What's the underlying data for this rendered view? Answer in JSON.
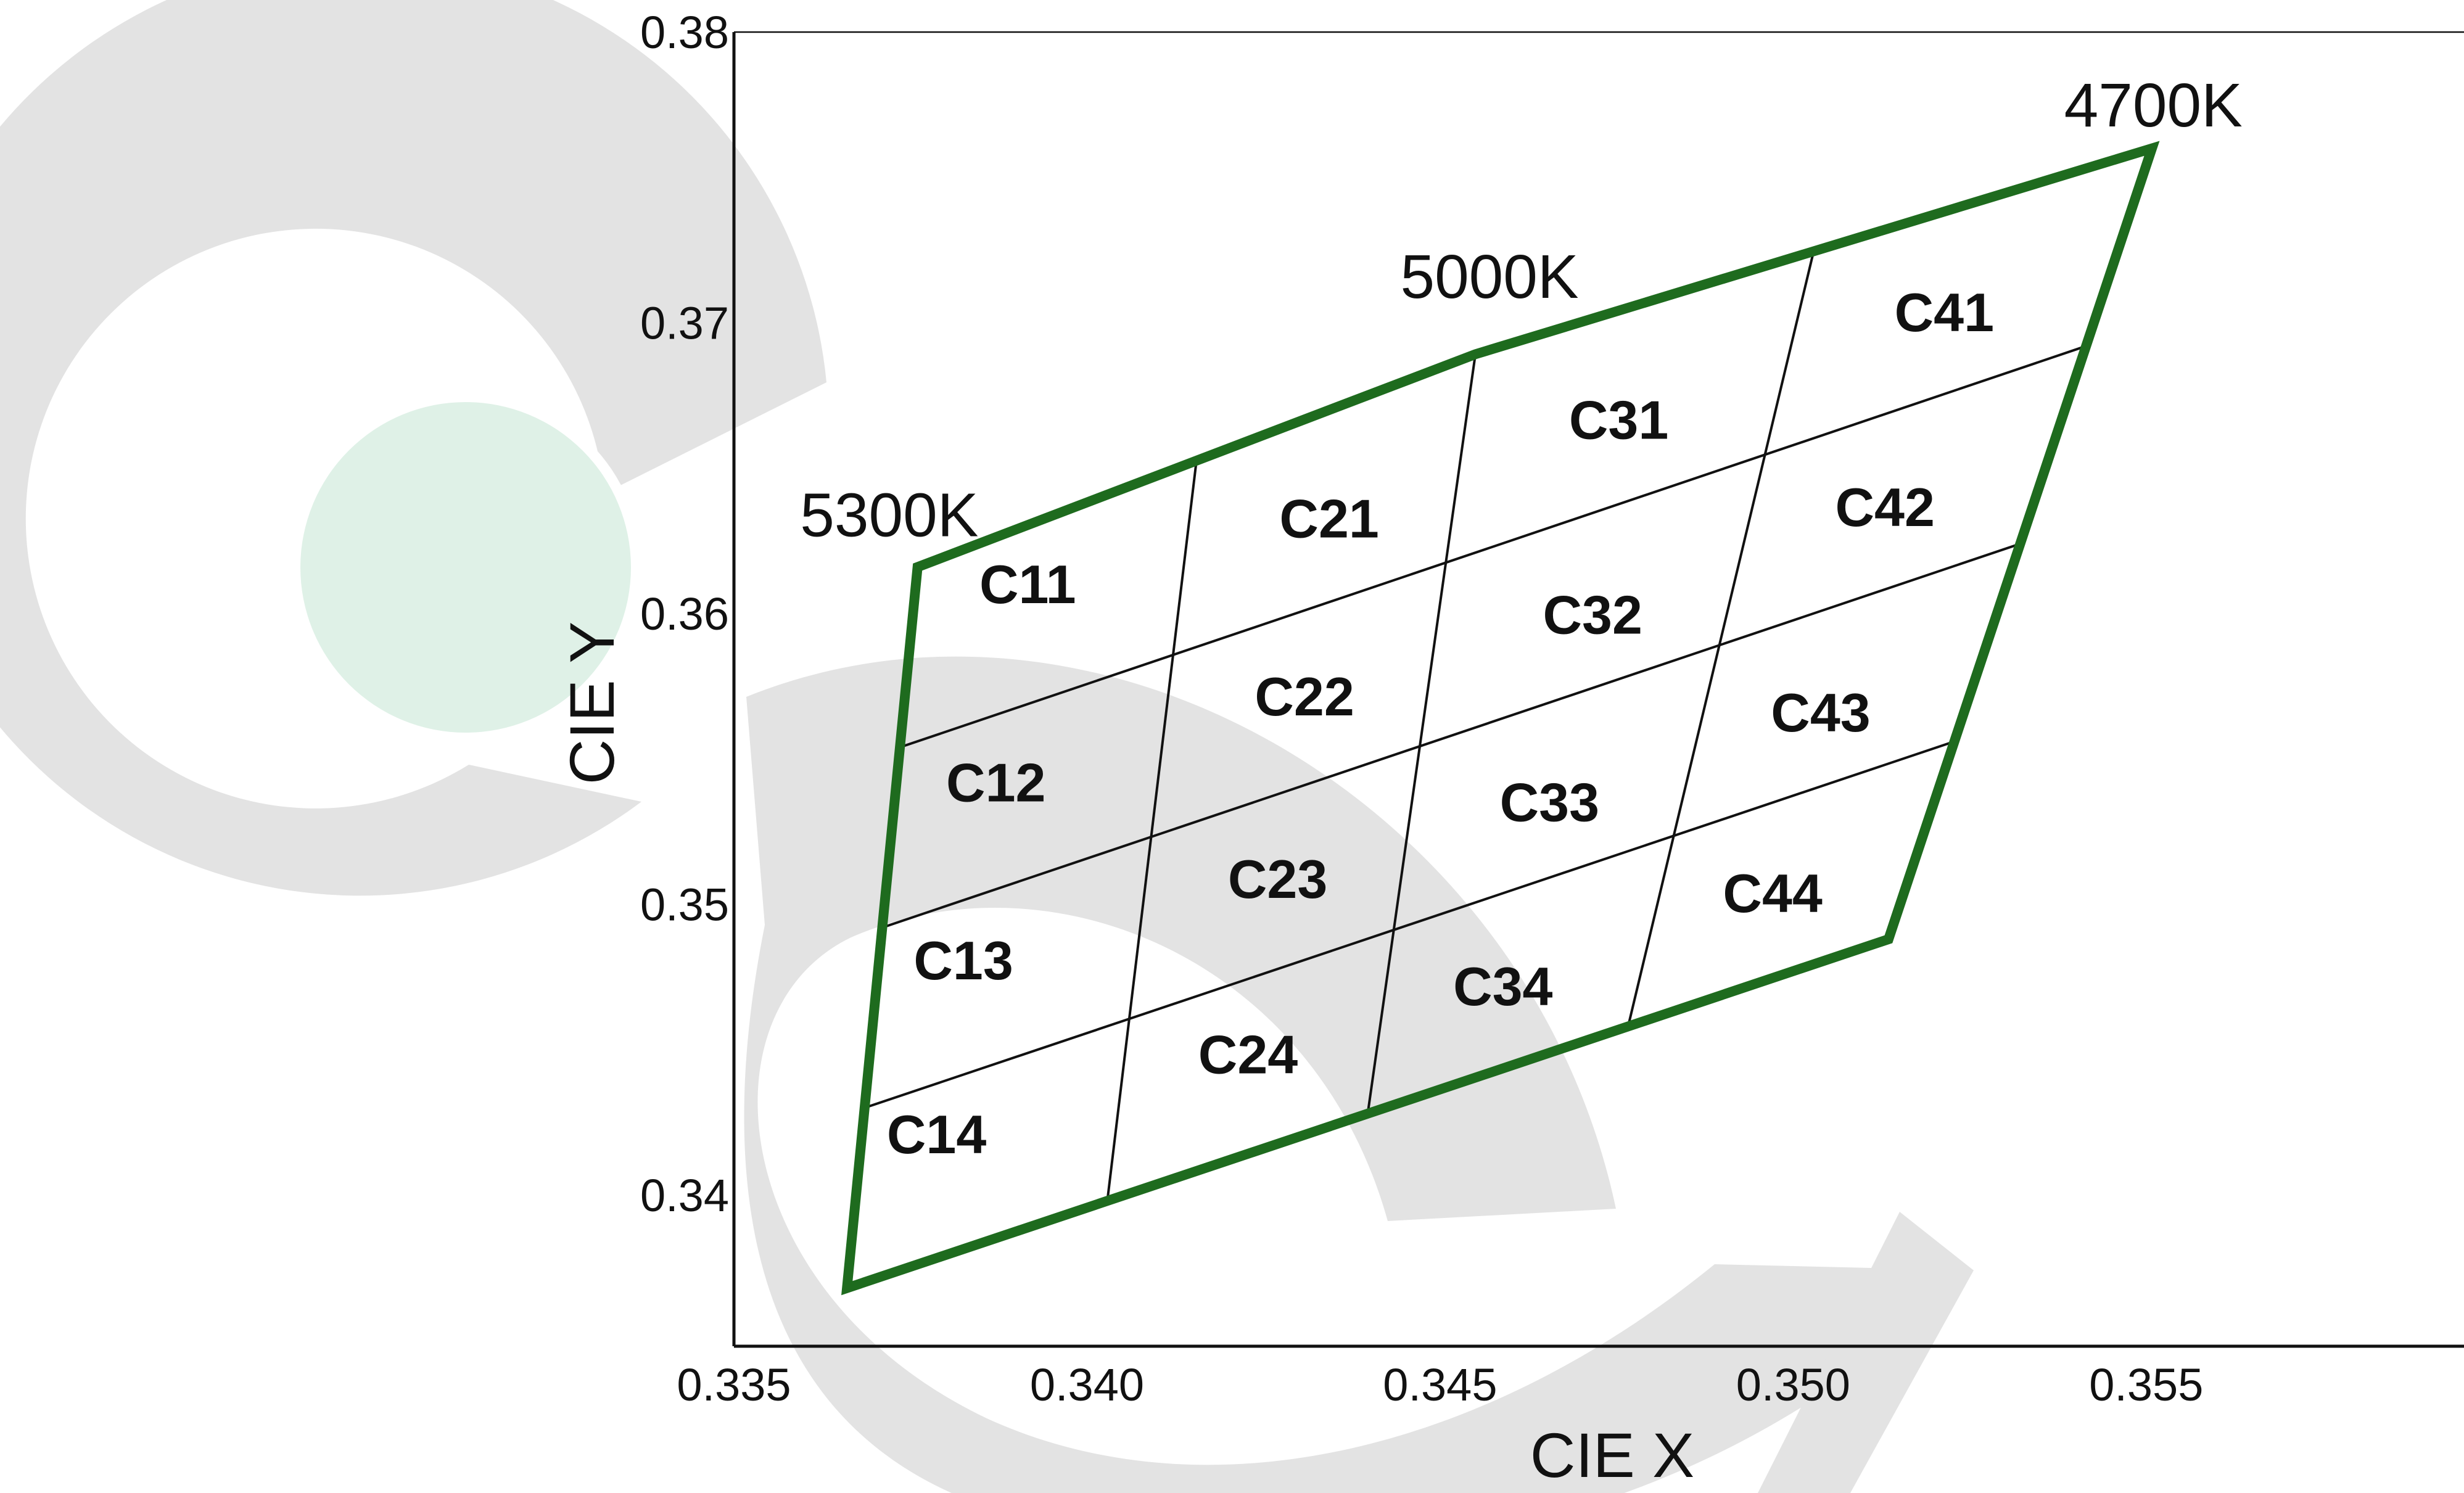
{
  "chart_data": {
    "type": "scatter",
    "title": "",
    "xlabel": "CIE X",
    "ylabel": "CIE Y",
    "xlim": [
      0.335,
      0.3595
    ],
    "ylim": [
      0.3348,
      0.38
    ],
    "xticks": [
      "0.335",
      "0.340",
      "0.345",
      "0.350",
      "0.355"
    ],
    "yticks": [
      "0.34",
      "0.35",
      "0.36",
      "0.37",
      "0.38"
    ],
    "grid": false,
    "outline_color": "#1e6b1e",
    "cct_labels": [
      {
        "text": "5300K",
        "x": 0.3372,
        "y": 0.3634
      },
      {
        "text": "5000K",
        "x": 0.3457,
        "y": 0.3716
      },
      {
        "text": "4700K",
        "x": 0.3551,
        "y": 0.3775
      }
    ],
    "region_corners": {
      "x": [
        0.3376,
        0.3455,
        0.35508,
        0.35135,
        0.3366
      ],
      "y": [
        0.3616,
        0.36892,
        0.376,
        0.3488,
        0.3368
      ]
    },
    "bins": [
      {
        "name": "C11",
        "x": 0.33916,
        "y": 0.36099
      },
      {
        "name": "C12",
        "x": 0.33871,
        "y": 0.35418
      },
      {
        "name": "C13",
        "x": 0.33825,
        "y": 0.34806
      },
      {
        "name": "C14",
        "x": 0.33787,
        "y": 0.34207
      },
      {
        "name": "C21",
        "x": 0.34343,
        "y": 0.36325
      },
      {
        "name": "C22",
        "x": 0.34308,
        "y": 0.35714
      },
      {
        "name": "C23",
        "x": 0.3427,
        "y": 0.35086
      },
      {
        "name": "C24",
        "x": 0.34228,
        "y": 0.34482
      },
      {
        "name": "C31",
        "x": 0.34753,
        "y": 0.36665
      },
      {
        "name": "C32",
        "x": 0.34716,
        "y": 0.35994
      },
      {
        "name": "C33",
        "x": 0.34655,
        "y": 0.3535
      },
      {
        "name": "C34",
        "x": 0.34589,
        "y": 0.34717
      },
      {
        "name": "C41",
        "x": 0.35214,
        "y": 0.37035
      },
      {
        "name": "C42",
        "x": 0.3513,
        "y": 0.36365
      },
      {
        "name": "C43",
        "x": 0.35039,
        "y": 0.35658
      },
      {
        "name": "C44",
        "x": 0.34971,
        "y": 0.35037
      }
    ]
  }
}
